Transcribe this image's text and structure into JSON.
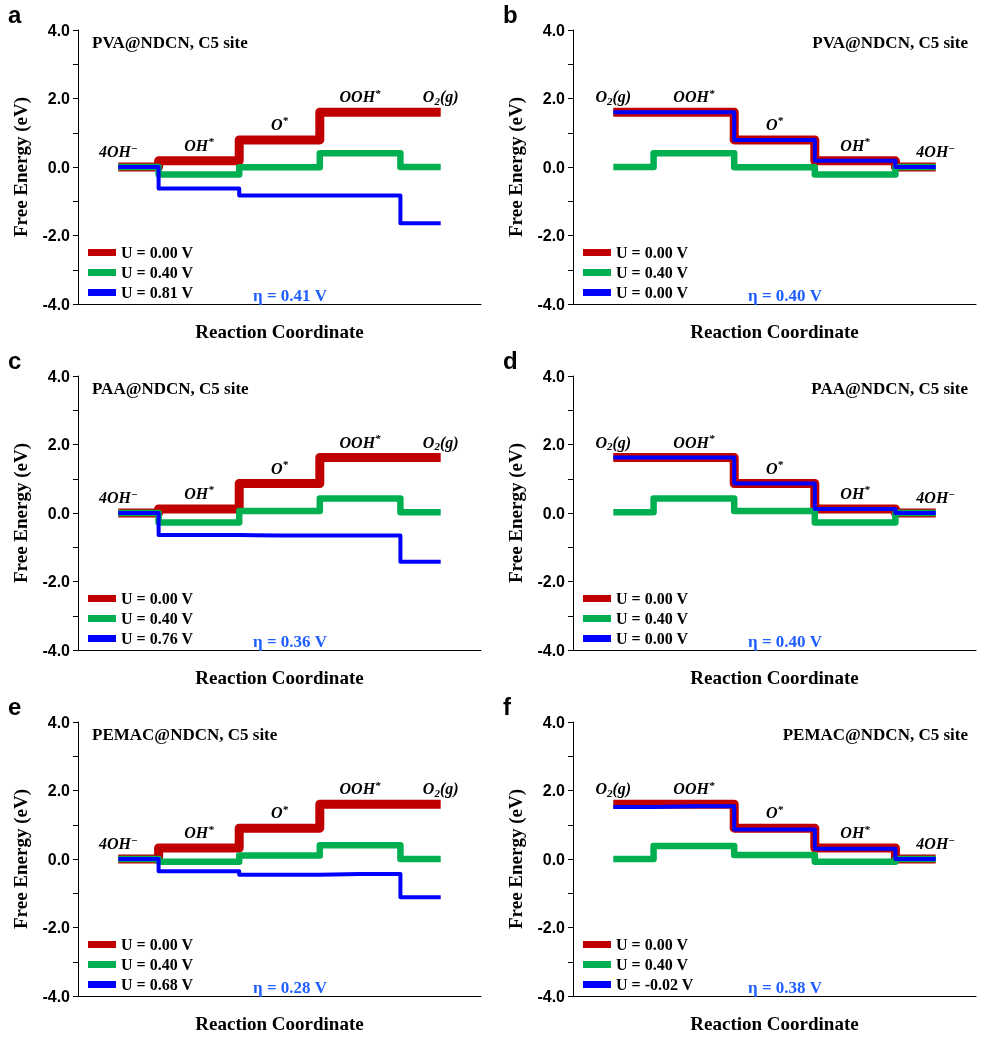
{
  "chart_data": [
    {
      "type": "step",
      "title": "PVA@NDCN, C5 site",
      "ylabel": "Free Energy (eV)",
      "xlabel": "Reaction Coordinate",
      "annotations": [
        "a",
        "η = 0.41 V"
      ],
      "categories": [
        "4OH$^{−}$",
        "OH$^{*}$",
        "O$^{*}$",
        "OOH$^{*}$",
        "O$_{2}$(g)"
      ],
      "series": [
        {
          "name": "U = 0.00 V",
          "color": "#c00000",
          "values": [
            0,
            0.18,
            0.79,
            1.6,
            1.6
          ]
        },
        {
          "name": "U = 0.40 V",
          "color": "#00b050",
          "values": [
            0,
            -0.22,
            -0.01,
            0.4,
            0
          ]
        },
        {
          "name": "U = 0.81 V",
          "color": "#0000ff",
          "values": [
            0,
            -0.63,
            -0.83,
            -0.83,
            -1.64
          ]
        }
      ],
      "ylim": [
        -4,
        4
      ],
      "yticks": [
        {
          "value": -4,
          "label": "-4.0"
        },
        {
          "value": -3,
          "label": null
        },
        {
          "value": -2,
          "label": "-2.0"
        },
        {
          "value": -1,
          "label": null
        },
        {
          "value": 0,
          "label": "0.0"
        },
        {
          "value": 1,
          "label": null
        },
        {
          "value": 2,
          "label": "2.0"
        },
        {
          "value": 3,
          "label": null
        },
        {
          "value": 4,
          "label": "4.0"
        }
      ],
      "tick_labels": "y",
      "legend": "bottom left",
      "grid": false
    },
    {
      "type": "step",
      "title": "PVA@NDCN, C5 site",
      "ylabel": "Free Energy (eV)",
      "xlabel": "Reaction Coordinate",
      "annotations": [
        "b",
        "η = 0.40 V"
      ],
      "categories": [
        "O$_{2}$(g)",
        "OOH$^{*}$",
        "O$^{*}$",
        "OH$^{*}$",
        "4OH$^{−}$"
      ],
      "series": [
        {
          "name": "U = 0.00 V",
          "color": "#c00000",
          "values": [
            1.6,
            1.6,
            0.79,
            0.18,
            0
          ]
        },
        {
          "name": "U = 0.40 V",
          "color": "#00b050",
          "values": [
            0,
            0.4,
            -0.01,
            -0.22,
            0
          ]
        },
        {
          "name": "U = 0.00 V",
          "color": "#0000ff",
          "values": [
            1.6,
            1.6,
            0.79,
            0.18,
            0
          ]
        }
      ],
      "ylim": [
        -4,
        4
      ],
      "yticks": [
        {
          "value": -4,
          "label": "-4.0"
        },
        {
          "value": -3,
          "label": null
        },
        {
          "value": -2,
          "label": "-2.0"
        },
        {
          "value": -1,
          "label": null
        },
        {
          "value": 0,
          "label": "0.0"
        },
        {
          "value": 1,
          "label": null
        },
        {
          "value": 2,
          "label": "2.0"
        },
        {
          "value": 3,
          "label": null
        },
        {
          "value": 4,
          "label": "4.0"
        }
      ],
      "tick_labels": "y",
      "legend": "bottom left",
      "grid": false
    },
    {
      "type": "step",
      "title": "PAA@NDCN, C5 site",
      "ylabel": "Free Energy (eV)",
      "xlabel": "Reaction Coordinate",
      "annotations": [
        "c",
        "η = 0.36 V"
      ],
      "categories": [
        "4OH$^{−}$",
        "OH$^{*}$",
        "O$^{*}$",
        "OOH$^{*}$",
        "O$_{2}$(g)"
      ],
      "series": [
        {
          "name": "U = 0.00 V",
          "color": "#c00000",
          "values": [
            0,
            0.12,
            0.86,
            1.62,
            1.62
          ]
        },
        {
          "name": "U = 0.40 V",
          "color": "#00b050",
          "values": [
            0,
            -0.28,
            0.06,
            0.42,
            0.02
          ]
        },
        {
          "name": "U = 0.76 V",
          "color": "#0000ff",
          "values": [
            0,
            -0.64,
            -0.66,
            -0.66,
            -1.42
          ]
        }
      ],
      "ylim": [
        -4,
        4
      ],
      "yticks": [
        {
          "value": -4,
          "label": "-4.0"
        },
        {
          "value": -3,
          "label": null
        },
        {
          "value": -2,
          "label": "-2.0"
        },
        {
          "value": -1,
          "label": null
        },
        {
          "value": 0,
          "label": "0.0"
        },
        {
          "value": 1,
          "label": null
        },
        {
          "value": 2,
          "label": "2.0"
        },
        {
          "value": 3,
          "label": null
        },
        {
          "value": 4,
          "label": "4.0"
        }
      ],
      "tick_labels": "y",
      "legend": "bottom left",
      "grid": false
    },
    {
      "type": "step",
      "title": "PAA@NDCN, C5 site",
      "ylabel": "Free Energy (eV)",
      "xlabel": "Reaction Coordinate",
      "annotations": [
        "d",
        "η = 0.40 V"
      ],
      "categories": [
        "O$_{2}$(g)",
        "OOH$^{*}$",
        "O$^{*}$",
        "OH$^{*}$",
        "4OH$^{−}$"
      ],
      "series": [
        {
          "name": "U = 0.00 V",
          "color": "#c00000",
          "values": [
            1.62,
            1.62,
            0.86,
            0.12,
            0
          ]
        },
        {
          "name": "U = 0.40 V",
          "color": "#00b050",
          "values": [
            0.02,
            0.42,
            0.06,
            -0.28,
            0
          ]
        },
        {
          "name": "U = 0.00 V",
          "color": "#0000ff",
          "values": [
            1.62,
            1.62,
            0.86,
            0.12,
            0
          ]
        }
      ],
      "ylim": [
        -4,
        4
      ],
      "yticks": [
        {
          "value": -4,
          "label": "-4.0"
        },
        {
          "value": -3,
          "label": null
        },
        {
          "value": -2,
          "label": "-2.0"
        },
        {
          "value": -1,
          "label": null
        },
        {
          "value": 0,
          "label": "0.0"
        },
        {
          "value": 1,
          "label": null
        },
        {
          "value": 2,
          "label": "2.0"
        },
        {
          "value": 3,
          "label": null
        },
        {
          "value": 4,
          "label": "4.0"
        }
      ],
      "tick_labels": "y",
      "legend": "bottom left",
      "grid": false
    },
    {
      "type": "step",
      "title": "PEMAC@NDCN, C5 site",
      "ylabel": "Free Energy (eV)",
      "xlabel": "Reaction Coordinate",
      "annotations": [
        "e",
        "η = 0.28 V"
      ],
      "categories": [
        "4OH$^{−}$",
        "OH$^{*}$",
        "O$^{*}$",
        "OOH$^{*}$",
        "O$_{2}$(g)"
      ],
      "series": [
        {
          "name": "U = 0.00 V",
          "color": "#c00000",
          "values": [
            0,
            0.32,
            0.9,
            1.6,
            1.6
          ]
        },
        {
          "name": "U = 0.40 V",
          "color": "#00b050",
          "values": [
            0,
            -0.08,
            0.1,
            0.4,
            0
          ]
        },
        {
          "name": "U = 0.68 V",
          "color": "#0000ff",
          "values": [
            0,
            -0.36,
            -0.46,
            -0.44,
            -1.12
          ]
        }
      ],
      "ylim": [
        -4,
        4
      ],
      "yticks": [
        {
          "value": -4,
          "label": "-4.0"
        },
        {
          "value": -3,
          "label": null
        },
        {
          "value": -2,
          "label": "-2.0"
        },
        {
          "value": -1,
          "label": null
        },
        {
          "value": 0,
          "label": "0.0"
        },
        {
          "value": 1,
          "label": null
        },
        {
          "value": 2,
          "label": "2.0"
        },
        {
          "value": 3,
          "label": null
        },
        {
          "value": 4,
          "label": "4.0"
        }
      ],
      "tick_labels": "y",
      "legend": "bottom left",
      "grid": false
    },
    {
      "type": "step",
      "title": "PEMAC@NDCN, C5 site",
      "ylabel": "Free Energy (eV)",
      "xlabel": "Reaction Coordinate",
      "annotations": [
        "f",
        "η = 0.38 V"
      ],
      "categories": [
        "O$_{2}$(g)",
        "OOH$^{*}$",
        "O$^{*}$",
        "OH$^{*}$",
        "4OH$^{−}$"
      ],
      "series": [
        {
          "name": "U = 0.00 V",
          "color": "#c00000",
          "values": [
            1.6,
            1.6,
            0.9,
            0.32,
            0
          ]
        },
        {
          "name": "U = 0.40 V",
          "color": "#00b050",
          "values": [
            0,
            0.38,
            0.12,
            -0.08,
            0
          ]
        },
        {
          "name": "U = -0.02 V",
          "color": "#0000ff",
          "values": [
            1.52,
            1.54,
            0.86,
            0.3,
            0
          ]
        }
      ],
      "ylim": [
        -4,
        4
      ],
      "yticks": [
        {
          "value": -4,
          "label": "-4.0"
        },
        {
          "value": -3,
          "label": null
        },
        {
          "value": -2,
          "label": "-2.0"
        },
        {
          "value": -1,
          "label": null
        },
        {
          "value": 0,
          "label": "0.0"
        },
        {
          "value": 1,
          "label": null
        },
        {
          "value": 2,
          "label": "2.0"
        },
        {
          "value": 3,
          "label": null
        },
        {
          "value": 4,
          "label": "4.0"
        }
      ],
      "tick_labels": "y",
      "legend": "bottom left",
      "grid": false
    }
  ]
}
